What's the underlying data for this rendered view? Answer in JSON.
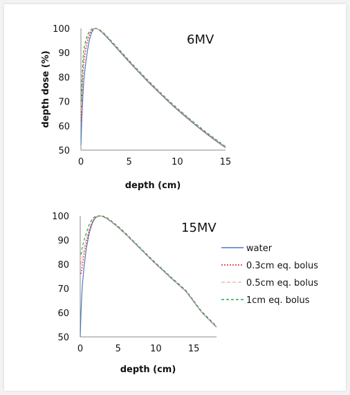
{
  "chart_data": [
    {
      "type": "line",
      "annotation": "6MV",
      "xlabel": "depth (cm)",
      "ylabel": "depth dose (%)",
      "xlim": [
        0,
        15
      ],
      "ylim": [
        50,
        100
      ],
      "xticks": [
        "0",
        "5",
        "10",
        "15"
      ],
      "yticks": [
        "50",
        "60",
        "70",
        "80",
        "90",
        "100"
      ],
      "grid": false,
      "legend": false,
      "series": [
        {
          "name": "water",
          "color": "#4a78c2",
          "dash": "",
          "x": [
            0,
            0.1,
            0.2,
            0.3,
            0.5,
            0.7,
            0.9,
            1.1,
            1.3,
            1.5,
            1.7,
            2,
            2.5,
            3,
            4,
            5,
            6,
            7,
            8,
            9,
            10,
            11,
            12,
            13,
            14,
            15
          ],
          "y": [
            52,
            64,
            72,
            79,
            86,
            91.5,
            95.5,
            98.2,
            99.6,
            100,
            99.8,
            99,
            97.1,
            95,
            90.6,
            86.2,
            82,
            77.9,
            74,
            70.2,
            66.6,
            63.2,
            59.9,
            56.8,
            53.8,
            51
          ]
        },
        {
          "name": "0.3cm eq. bolus",
          "color": "#e02020",
          "dash": "2,2",
          "x": [
            0.05,
            0.1,
            0.2,
            0.3,
            0.5,
            0.7,
            0.9,
            1.1,
            1.3,
            1.5,
            1.7,
            2,
            2.5,
            3,
            4,
            5,
            6,
            7,
            8,
            9,
            10,
            11,
            12,
            13,
            14,
            15
          ],
          "y": [
            62,
            71,
            81,
            86,
            91.5,
            95,
            97.5,
            99,
            99.8,
            100,
            99.8,
            99.1,
            97.3,
            95.2,
            90.8,
            86.4,
            82.2,
            78.1,
            74.2,
            70.4,
            66.8,
            63.4,
            60.1,
            57,
            54,
            51.2
          ]
        },
        {
          "name": "0.5cm eq. bolus",
          "color": "#f0b8a8",
          "dash": "5,3",
          "x": [
            0.05,
            0.1,
            0.2,
            0.3,
            0.5,
            0.7,
            0.9,
            1.1,
            1.3,
            1.5,
            1.7,
            2,
            2.5,
            3,
            4,
            5,
            6,
            7,
            8,
            9,
            10,
            11,
            12,
            13,
            14,
            15
          ],
          "y": [
            66,
            75,
            84,
            89,
            93.5,
            96.3,
            98.2,
            99.4,
            99.9,
            100,
            99.8,
            99.2,
            97.4,
            95.3,
            91,
            86.6,
            82.4,
            78.3,
            74.4,
            70.6,
            67,
            63.6,
            60.3,
            57.2,
            54.2,
            51.3
          ]
        },
        {
          "name": "1cm eq. bolus",
          "color": "#2ea84a",
          "dash": "4,3",
          "x": [
            0.05,
            0.1,
            0.2,
            0.3,
            0.5,
            0.7,
            0.9,
            1.1,
            1.3,
            1.5,
            1.7,
            2,
            2.5,
            3,
            4,
            5,
            6,
            7,
            8,
            9,
            10,
            11,
            12,
            13,
            14,
            15
          ],
          "y": [
            70,
            79,
            87,
            91.5,
            95.3,
            97.5,
            98.9,
            99.7,
            100,
            100,
            99.8,
            99.3,
            97.6,
            95.5,
            91.2,
            86.8,
            82.6,
            78.5,
            74.6,
            70.8,
            67.2,
            63.8,
            60.5,
            57.4,
            54.4,
            51.5
          ]
        }
      ]
    },
    {
      "type": "line",
      "annotation": "15MV",
      "xlabel": "depth (cm)",
      "ylabel": "",
      "xlim": [
        0,
        18
      ],
      "ylim": [
        50,
        100
      ],
      "xticks": [
        "0",
        "5",
        "10",
        "15"
      ],
      "yticks": [
        "50",
        "60",
        "70",
        "80",
        "90",
        "100"
      ],
      "grid": false,
      "legend": true,
      "legend_position": "right",
      "series": [
        {
          "name": "water",
          "color": "#4a78c2",
          "dash": "",
          "x": [
            0,
            0.1,
            0.2,
            0.3,
            0.5,
            0.8,
            1.2,
            1.6,
            2,
            2.5,
            3,
            3.5,
            4,
            5,
            6,
            7,
            8,
            9,
            10,
            11,
            12,
            13,
            14,
            15,
            16,
            17,
            18
          ],
          "y": [
            50,
            60,
            67,
            72,
            79,
            86.5,
            93,
            97,
            99.2,
            100,
            99.7,
            98.9,
            97.8,
            95.3,
            92.4,
            89.3,
            86.2,
            83.1,
            80.1,
            77.2,
            74.3,
            71.5,
            68.7,
            64.5,
            60.3,
            57.1,
            54
          ]
        },
        {
          "name": "0.3cm eq. bolus",
          "color": "#e02020",
          "dash": "2,2",
          "x": [
            0.1,
            0.2,
            0.3,
            0.5,
            0.8,
            1.2,
            1.6,
            2,
            2.5,
            3,
            3.5,
            4,
            5,
            6,
            7,
            8,
            9,
            10,
            11,
            12,
            13,
            14,
            15,
            16,
            17,
            18
          ],
          "y": [
            76,
            78,
            80,
            84,
            89,
            94,
            97.5,
            99.4,
            100,
            99.7,
            99,
            97.9,
            95.4,
            92.5,
            89.4,
            86.3,
            83.2,
            80.2,
            77.3,
            74.4,
            71.6,
            68.8,
            64.6,
            60.4,
            57.2,
            54.1
          ]
        },
        {
          "name": "0.5cm eq. bolus",
          "color": "#f0b8a8",
          "dash": "5,3",
          "x": [
            0.1,
            0.2,
            0.3,
            0.5,
            0.8,
            1.2,
            1.6,
            2,
            2.5,
            3,
            3.5,
            4,
            5,
            6,
            7,
            8,
            9,
            10,
            11,
            12,
            13,
            14,
            15,
            16,
            17,
            18
          ],
          "y": [
            80,
            82,
            84,
            87,
            91,
            95,
            98,
            99.6,
            100,
            99.8,
            99.1,
            98,
            95.5,
            92.6,
            89.5,
            86.4,
            83.3,
            80.3,
            77.4,
            74.5,
            71.7,
            68.9,
            64.7,
            60.5,
            57.3,
            54.2
          ]
        },
        {
          "name": "1cm eq. bolus",
          "color": "#2ea84a",
          "dash": "4,3",
          "x": [
            0.1,
            0.2,
            0.3,
            0.5,
            0.8,
            1.2,
            1.6,
            2,
            2.5,
            3,
            3.5,
            4,
            5,
            6,
            7,
            8,
            9,
            10,
            11,
            12,
            13,
            14,
            15,
            16,
            17,
            18
          ],
          "y": [
            84,
            86,
            87.5,
            90,
            93,
            96.5,
            98.8,
            99.8,
            100,
            99.9,
            99.3,
            98.2,
            95.7,
            92.8,
            89.7,
            86.6,
            83.5,
            80.5,
            77.6,
            74.7,
            71.9,
            69.1,
            64.9,
            60.7,
            57.5,
            54.4
          ]
        }
      ]
    }
  ]
}
